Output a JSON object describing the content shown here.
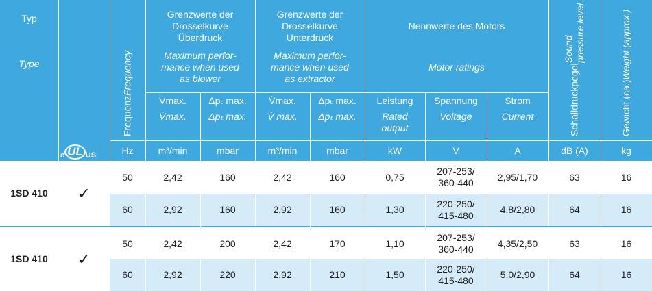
{
  "header": {
    "type": [
      "Typ",
      "Type"
    ],
    "certification": [
      "c",
      "UL",
      "US"
    ],
    "frequency": [
      "Frequenz",
      "Frequency"
    ],
    "groups": [
      {
        "de": [
          "Grenzwerte der",
          "Drosselkurve",
          "Überdruck"
        ],
        "en": [
          "Maximum perfor-",
          "mance when used",
          "as blower"
        ]
      },
      {
        "de": [
          "Grenzwerte der",
          "Drosselkurve",
          "Unterdruck"
        ],
        "en": [
          "Maximum perfor-",
          "mance when used",
          "as extractor"
        ]
      },
      {
        "de": [
          "Nennwerte des Motors"
        ],
        "en": [
          "Motor ratings"
        ]
      }
    ],
    "subcolumns": [
      {
        "de": "V̇max.",
        "en": "V̇max."
      },
      {
        "de": "Δpₜ max.",
        "en": "Δpₜ max."
      },
      {
        "de": "V̇max.",
        "en": "V̇ max."
      },
      {
        "de": "Δpₜ max.",
        "en": "Δpₜ max."
      },
      {
        "de": "Leistung",
        "en": [
          "Rated",
          "output"
        ]
      },
      {
        "de": "Spannung",
        "en": "Voltage"
      },
      {
        "de": "Strom",
        "en": "Current"
      }
    ],
    "sound": [
      "Schalldruckpegel",
      "Sound pressure level"
    ],
    "weight": [
      "Gewicht (ca.)",
      "Weight (approx.)"
    ],
    "units": [
      "Hz",
      "m³/min",
      "mbar",
      "m³/min",
      "mbar",
      "kW",
      "V",
      "A",
      "dB (A)",
      "kg"
    ]
  },
  "groups": [
    {
      "type": "1SD 410",
      "approved": "✓",
      "rows": [
        [
          "50",
          "2,42",
          "160",
          "2,42",
          "160",
          "0,75",
          [
            "207-253/",
            "360-440"
          ],
          "2,95/1,70",
          "63",
          "16"
        ],
        [
          "60",
          "2,92",
          "160",
          "2,92",
          "160",
          "1,30",
          [
            "220-250/",
            "415-480"
          ],
          "4,8/2,80",
          "64",
          "16"
        ]
      ]
    },
    {
      "type": "1SD 410",
      "approved": "✓",
      "rows": [
        [
          "50",
          "2,42",
          "200",
          "2,42",
          "170",
          "1,10",
          [
            "207-253/",
            "360-440"
          ],
          "4,35/2,50",
          "63",
          "16"
        ],
        [
          "60",
          "2,92",
          "220",
          "2,92",
          "210",
          "1,50",
          [
            "220-250/",
            "415-480"
          ],
          "5,0/2,90",
          "64",
          "16"
        ]
      ]
    }
  ]
}
